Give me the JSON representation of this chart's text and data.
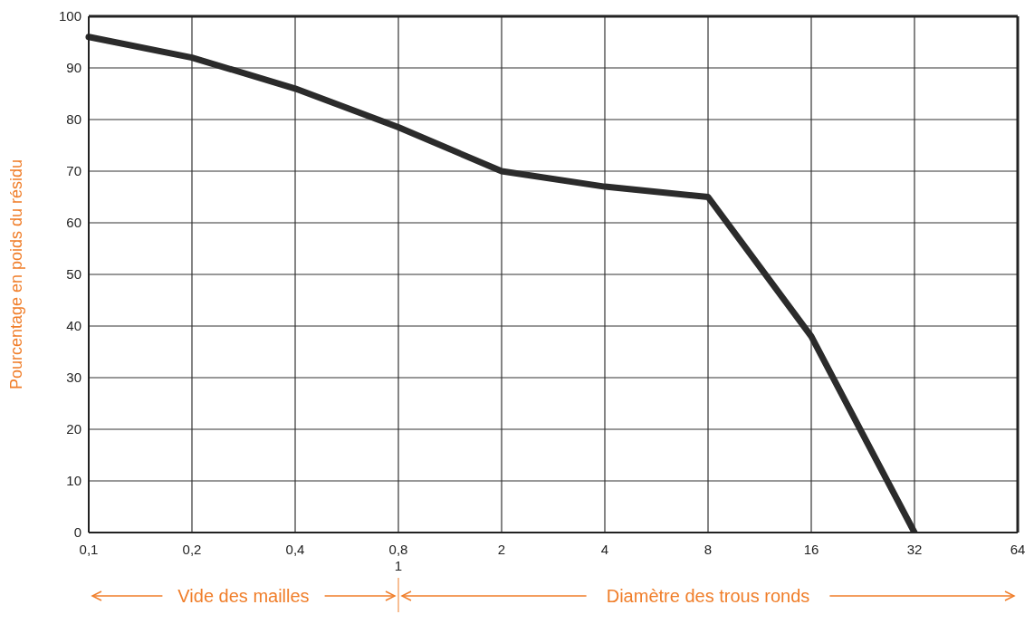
{
  "chart_data": {
    "type": "line",
    "ylabel": "Pourcentage en poids du résidu",
    "categories": [
      "0,1",
      "0,2",
      "0,4",
      "0,8\n1",
      "2",
      "4",
      "8",
      "16",
      "32",
      "64"
    ],
    "series": [
      {
        "color": "#2b2b2b",
        "values": [
          96,
          92,
          86,
          78.5,
          70,
          67,
          65,
          38,
          0,
          null
        ]
      }
    ],
    "ylim": [
      0,
      100
    ],
    "yticks": [
      0,
      10,
      20,
      30,
      40,
      50,
      60,
      70,
      80,
      90,
      100
    ],
    "grid": true,
    "marker": "none",
    "line_style": "solid",
    "annotations": [
      "Vide des mailles",
      "Diamètre des trous ronds"
    ]
  }
}
